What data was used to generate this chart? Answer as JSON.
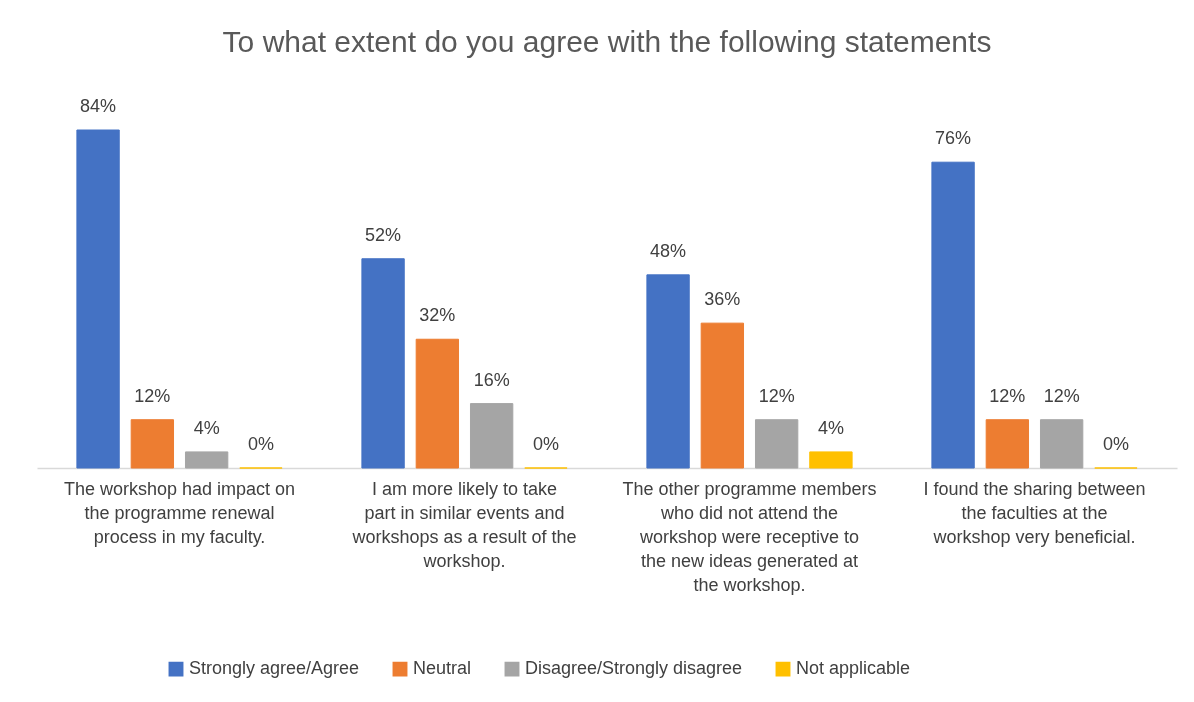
{
  "chart_data": {
    "type": "bar",
    "title": "To what extent do you agree with the following statements",
    "categories": [
      "The workshop had impact on the programme renewal process in my faculty.",
      "I am more likely to take part in similar events and workshops as a result of the workshop.",
      "The other programme members who did not attend the workshop were receptive to the new ideas generated at the workshop.",
      "I found the sharing between the faculties at the workshop very beneficial."
    ],
    "series": [
      {
        "name": "Strongly agree/Agree",
        "color": "#4472c4",
        "values": [
          84,
          52,
          48,
          76
        ],
        "value_labels": [
          "84%",
          "52%",
          "48%",
          "76%"
        ]
      },
      {
        "name": "Neutral",
        "color": "#ed7d31",
        "values": [
          12,
          32,
          36,
          12
        ],
        "value_labels": [
          "12%",
          "32%",
          "36%",
          "12%"
        ]
      },
      {
        "name": "Disagree/Strongly disagree",
        "color": "#a5a5a5",
        "values": [
          4,
          16,
          12,
          12
        ],
        "value_labels": [
          "4%",
          "16%",
          "12%",
          "12%"
        ]
      },
      {
        "name": "Not applicable",
        "color": "#ffc000",
        "values": [
          0,
          0,
          4,
          0
        ],
        "value_labels": [
          "0%",
          "0%",
          "4%",
          "0%"
        ]
      }
    ],
    "legend": "bottom",
    "tick_labels": "x"
  }
}
